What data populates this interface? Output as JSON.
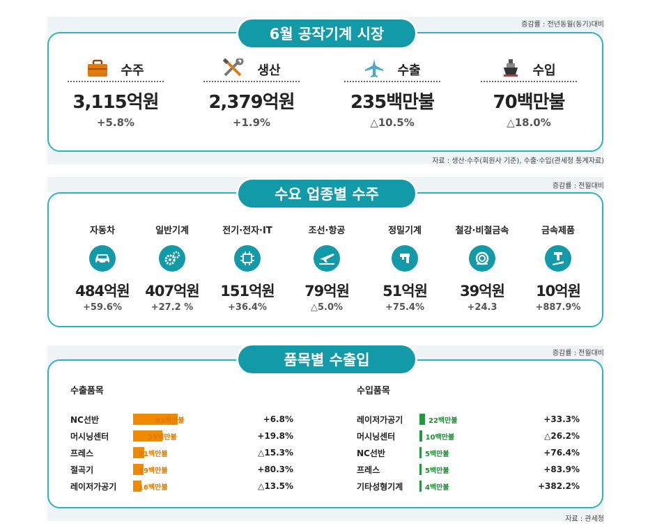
{
  "section1": {
    "title": "6월 공작기계 시장",
    "basis_note": "증감률 : 전년동월(동기)대비",
    "source_note": "자료 : 생산·수주(회원사 기준), 수출·수입(관세청 통계자료)",
    "stats": [
      {
        "label": "수주",
        "value": "3,115억원",
        "change": "+5.8%",
        "icon": "briefcase-icon"
      },
      {
        "label": "생산",
        "value": "2,379억원",
        "change": "+1.9%",
        "icon": "tools-icon"
      },
      {
        "label": "수출",
        "value": "235백만불",
        "change": "△10.5%",
        "icon": "airplane-icon"
      },
      {
        "label": "수입",
        "value": "70백만불",
        "change": "△18.0%",
        "icon": "ship-icon"
      }
    ]
  },
  "section2": {
    "title": "수요 업종별 수주",
    "basis_note": "증감률 : 전월대비",
    "industries": [
      {
        "name": "자동차",
        "value": "484억원",
        "change": "+59.6%",
        "icon": "car-icon"
      },
      {
        "name": "일반기계",
        "value": "407억원",
        "change": "+27.2 %",
        "icon": "gears-icon"
      },
      {
        "name": "전기·전자·IT",
        "value": "151억원",
        "change": "+36.4%",
        "icon": "chip-icon"
      },
      {
        "name": "조선·항공",
        "value": "79억원",
        "change": "△5.0%",
        "icon": "plane-ship-icon"
      },
      {
        "name": "정밀기계",
        "value": "51억원",
        "change": "+75.4%",
        "icon": "precision-tool-icon"
      },
      {
        "name": "철강·비철금속",
        "value": "39억원",
        "change": "+24.3",
        "icon": "metal-coil-icon"
      },
      {
        "name": "금속제품",
        "value": "10억원",
        "change": "+887.9%",
        "icon": "metal-product-icon"
      }
    ]
  },
  "section3": {
    "title": "품목별 수출입",
    "basis_note": "증감률 : 전월대비",
    "source_note": "자료 : 관세청",
    "export": {
      "title": "수출품목",
      "color": "#f08a00",
      "unit_max": 83,
      "items": [
        {
          "name": "NC선반",
          "value": 83,
          "label": "83백만불",
          "change": "+6.8%"
        },
        {
          "name": "머시닝센터",
          "value": 55,
          "label": "55백만불",
          "change": "+19.8%"
        },
        {
          "name": "프레스",
          "value": 21,
          "label": "21백만불",
          "change": "△15.3%"
        },
        {
          "name": "절곡기",
          "value": 19,
          "label": "19백만불",
          "change": "+80.3%"
        },
        {
          "name": "레이저가공기",
          "value": 16,
          "label": "16백만불",
          "change": "△13.5%"
        }
      ]
    },
    "import": {
      "title": "수입품목",
      "color": "#1f9a3d",
      "unit_max": 22,
      "items": [
        {
          "name": "레이저가공기",
          "value": 22,
          "label": "22백만불",
          "change": "+33.3%"
        },
        {
          "name": "머시닝센터",
          "value": 10,
          "label": "10백만불",
          "change": "△26.2%"
        },
        {
          "name": "NC선반",
          "value": 5,
          "label": "5백만불",
          "change": "+76.4%"
        },
        {
          "name": "프레스",
          "value": 5,
          "label": "5백만불",
          "change": "+83.9%"
        },
        {
          "name": "기타성형기계",
          "value": 4,
          "label": "4백만불",
          "change": "+382.2%"
        }
      ]
    }
  }
}
